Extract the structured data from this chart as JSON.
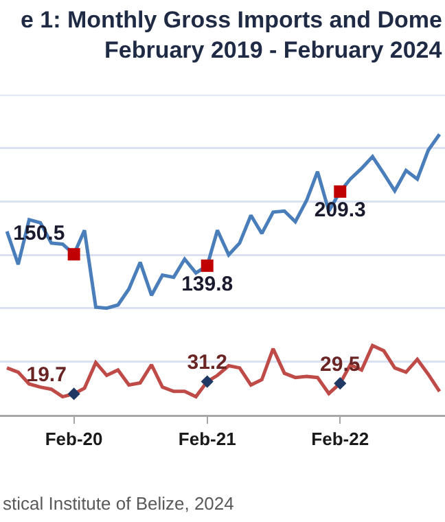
{
  "chart_data": {
    "type": "line",
    "title": "e 1: Monthly Gross Imports and Dome",
    "subtitle": "February 2019 - February 2024",
    "x": [
      "2019-08",
      "2019-09",
      "2019-10",
      "2019-11",
      "2019-12",
      "2020-01",
      "2020-02",
      "2020-03",
      "2020-04",
      "2020-05",
      "2020-06",
      "2020-07",
      "2020-08",
      "2020-09",
      "2020-10",
      "2020-11",
      "2020-12",
      "2021-01",
      "2021-02",
      "2021-03",
      "2021-04",
      "2021-05",
      "2021-06",
      "2021-07",
      "2021-08",
      "2021-09",
      "2021-10",
      "2021-11",
      "2021-12",
      "2022-01",
      "2022-02",
      "2022-03",
      "2022-04",
      "2022-05",
      "2022-06",
      "2022-07",
      "2022-08",
      "2022-09",
      "2022-10",
      "2022-11"
    ],
    "series": [
      {
        "color": "#4a7ebb",
        "marker": "none",
        "values": [
          172,
          141,
          183,
          180,
          161,
          160,
          150.5,
          173,
          101,
          100,
          103,
          118,
          143,
          112,
          131,
          129,
          146,
          133,
          139.8,
          173,
          150,
          161,
          187,
          170,
          190,
          191,
          181,
          201,
          228,
          191,
          209.3,
          221,
          231,
          242,
          226,
          210,
          229,
          221,
          248,
          263
        ]
      },
      {
        "color": "#be4b48",
        "marker": "none",
        "values": [
          44,
          40,
          29,
          26,
          24,
          17,
          19.7,
          25,
          49,
          37,
          42,
          28,
          30,
          47,
          26,
          22,
          22,
          17,
          31.2,
          37,
          46,
          44,
          28,
          33,
          62,
          39,
          35,
          36,
          35,
          20,
          29.5,
          47,
          42,
          65,
          60,
          44,
          40,
          52,
          38,
          22
        ]
      },
      {
        "type": "scatter",
        "color": "#c00000",
        "marker": "square",
        "x": [
          "2020-02",
          "2021-02",
          "2022-02"
        ],
        "values": [
          150.5,
          139.8,
          209.3
        ],
        "value_labels": [
          "150.5",
          "139.8",
          "209.3"
        ]
      },
      {
        "type": "scatter",
        "color": "#1f3864",
        "marker": "diamond",
        "x": [
          "2020-02",
          "2021-02",
          "2022-02"
        ],
        "values": [
          19.7,
          31.2,
          29.5
        ],
        "value_labels": [
          "19.7",
          "31.2",
          "29.5"
        ]
      }
    ],
    "xlim": [
      "2019-07-13",
      "2022-11-16"
    ],
    "xticks": [
      {
        "value": "2020-02",
        "label": "Feb-20"
      },
      {
        "value": "2021-02",
        "label": "Feb-21"
      },
      {
        "value": "2022-02",
        "label": "Feb-22"
      }
    ],
    "ylim": [
      0,
      300
    ],
    "yticks": [
      {
        "value": 0,
        "label": null
      },
      {
        "value": 50,
        "label": null
      },
      {
        "value": 100,
        "label": null
      },
      {
        "value": 150,
        "label": null
      },
      {
        "value": 200,
        "label": null
      },
      {
        "value": 250,
        "label": null
      }
    ],
    "grid": "y",
    "legend": false,
    "tick_labels": "x",
    "annotations": [
      "stical Institute of Belize, 2024"
    ]
  }
}
